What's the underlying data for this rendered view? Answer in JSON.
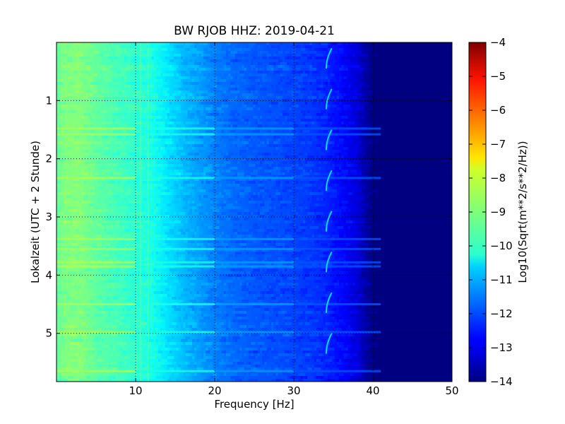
{
  "chart_data": {
    "type": "heatmap",
    "title": "BW RJOB HHZ: 2019-04-21",
    "xlabel": "Frequency [Hz]",
    "ylabel": "Lokalzeit (UTC + 2 Stunde)",
    "xlim": [
      0,
      50
    ],
    "ylim": [
      0,
      5.83
    ],
    "y_inverted": true,
    "grid": true,
    "colormap": "jet",
    "x_ticks": [
      10,
      20,
      30,
      40,
      50
    ],
    "x_tick_labels": [
      "10",
      "20",
      "30",
      "40",
      "50"
    ],
    "y_ticks": [
      1,
      2,
      3,
      4,
      5
    ],
    "y_tick_labels": [
      "1",
      "2",
      "3",
      "4",
      "5"
    ],
    "colorbar": {
      "label": "Log10(Sqrt(m**2/s**2/Hz))",
      "min": -14,
      "max": -4,
      "ticks": [
        -4,
        -5,
        -6,
        -7,
        -8,
        -9,
        -10,
        -11,
        -12,
        -13,
        -14
      ],
      "tick_labels": [
        "−4",
        "−5",
        "−6",
        "−7",
        "−8",
        "−9",
        "−10",
        "−11",
        "−12",
        "−13",
        "−14"
      ]
    },
    "spectrum_profile": {
      "frequency_hz": [
        0,
        1,
        3,
        5,
        8,
        10,
        12,
        14,
        16,
        18,
        20,
        22,
        25,
        28,
        30,
        32,
        34,
        36,
        38,
        39,
        40,
        42,
        45,
        50
      ],
      "log10_amplitude": [
        -9.3,
        -9.0,
        -9.0,
        -9.3,
        -9.6,
        -9.8,
        -10.0,
        -10.5,
        -10.9,
        -11.2,
        -11.5,
        -11.7,
        -11.9,
        -12.0,
        -12.1,
        -12.2,
        -12.4,
        -12.7,
        -13.1,
        -13.6,
        -14.0,
        -14.0,
        -14.0,
        -14.0
      ]
    },
    "bright_lines_hours": [
      1.48,
      1.58,
      2.33,
      3.38,
      3.55,
      3.78,
      3.85,
      4.5,
      4.98,
      5.65
    ]
  }
}
